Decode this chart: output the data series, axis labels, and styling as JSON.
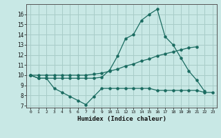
{
  "title": "",
  "xlabel": "Humidex (Indice chaleur)",
  "bg_color": "#c8e8e5",
  "grid_color": "#a8ccc8",
  "line_color": "#1a6b60",
  "xlim": [
    -0.5,
    23.5
  ],
  "ylim": [
    6.8,
    17.0
  ],
  "yticks": [
    7,
    8,
    9,
    10,
    11,
    12,
    13,
    14,
    15,
    16
  ],
  "xticks": [
    0,
    1,
    2,
    3,
    4,
    5,
    6,
    7,
    8,
    9,
    10,
    11,
    12,
    13,
    14,
    15,
    16,
    17,
    18,
    19,
    20,
    21,
    22,
    23
  ],
  "xtick_labels": [
    "0",
    "1",
    "2",
    "3",
    "4",
    "5",
    "6",
    "7",
    "8",
    "9",
    "10",
    "11",
    "12",
    "13",
    "14",
    "15",
    "16",
    "17",
    "18",
    "19",
    "20",
    "21",
    "22",
    "23"
  ],
  "line1_x": [
    0,
    1,
    2,
    3,
    4,
    5,
    6,
    7,
    8,
    9,
    10,
    11,
    12,
    13,
    14,
    15,
    16,
    17,
    18,
    19,
    20,
    21,
    22
  ],
  "line1_y": [
    10.0,
    9.7,
    9.7,
    9.7,
    9.7,
    9.7,
    9.7,
    9.7,
    9.7,
    9.8,
    10.5,
    11.9,
    13.6,
    14.0,
    15.4,
    16.0,
    16.5,
    13.8,
    13.0,
    11.7,
    10.4,
    9.5,
    8.4
  ],
  "line2_x": [
    0,
    1,
    2,
    3,
    4,
    5,
    6,
    7,
    8,
    9,
    10,
    11,
    12,
    13,
    14,
    15,
    16,
    17,
    18,
    19,
    20,
    21
  ],
  "line2_y": [
    10.0,
    10.0,
    10.0,
    10.0,
    10.0,
    10.0,
    10.0,
    10.0,
    10.1,
    10.2,
    10.4,
    10.6,
    10.9,
    11.1,
    11.4,
    11.6,
    11.9,
    12.1,
    12.3,
    12.5,
    12.7,
    12.8
  ],
  "line3_x": [
    0,
    1,
    2,
    3,
    4,
    5,
    6,
    7,
    8,
    9,
    10,
    11,
    12,
    13,
    14,
    15,
    16,
    17,
    18,
    19,
    20,
    21,
    22,
    23
  ],
  "line3_y": [
    10.0,
    9.7,
    9.7,
    8.7,
    8.3,
    7.9,
    7.5,
    7.1,
    7.9,
    8.7,
    8.7,
    8.7,
    8.7,
    8.7,
    8.7,
    8.7,
    8.5,
    8.5,
    8.5,
    8.5,
    8.5,
    8.5,
    8.3,
    8.3
  ]
}
